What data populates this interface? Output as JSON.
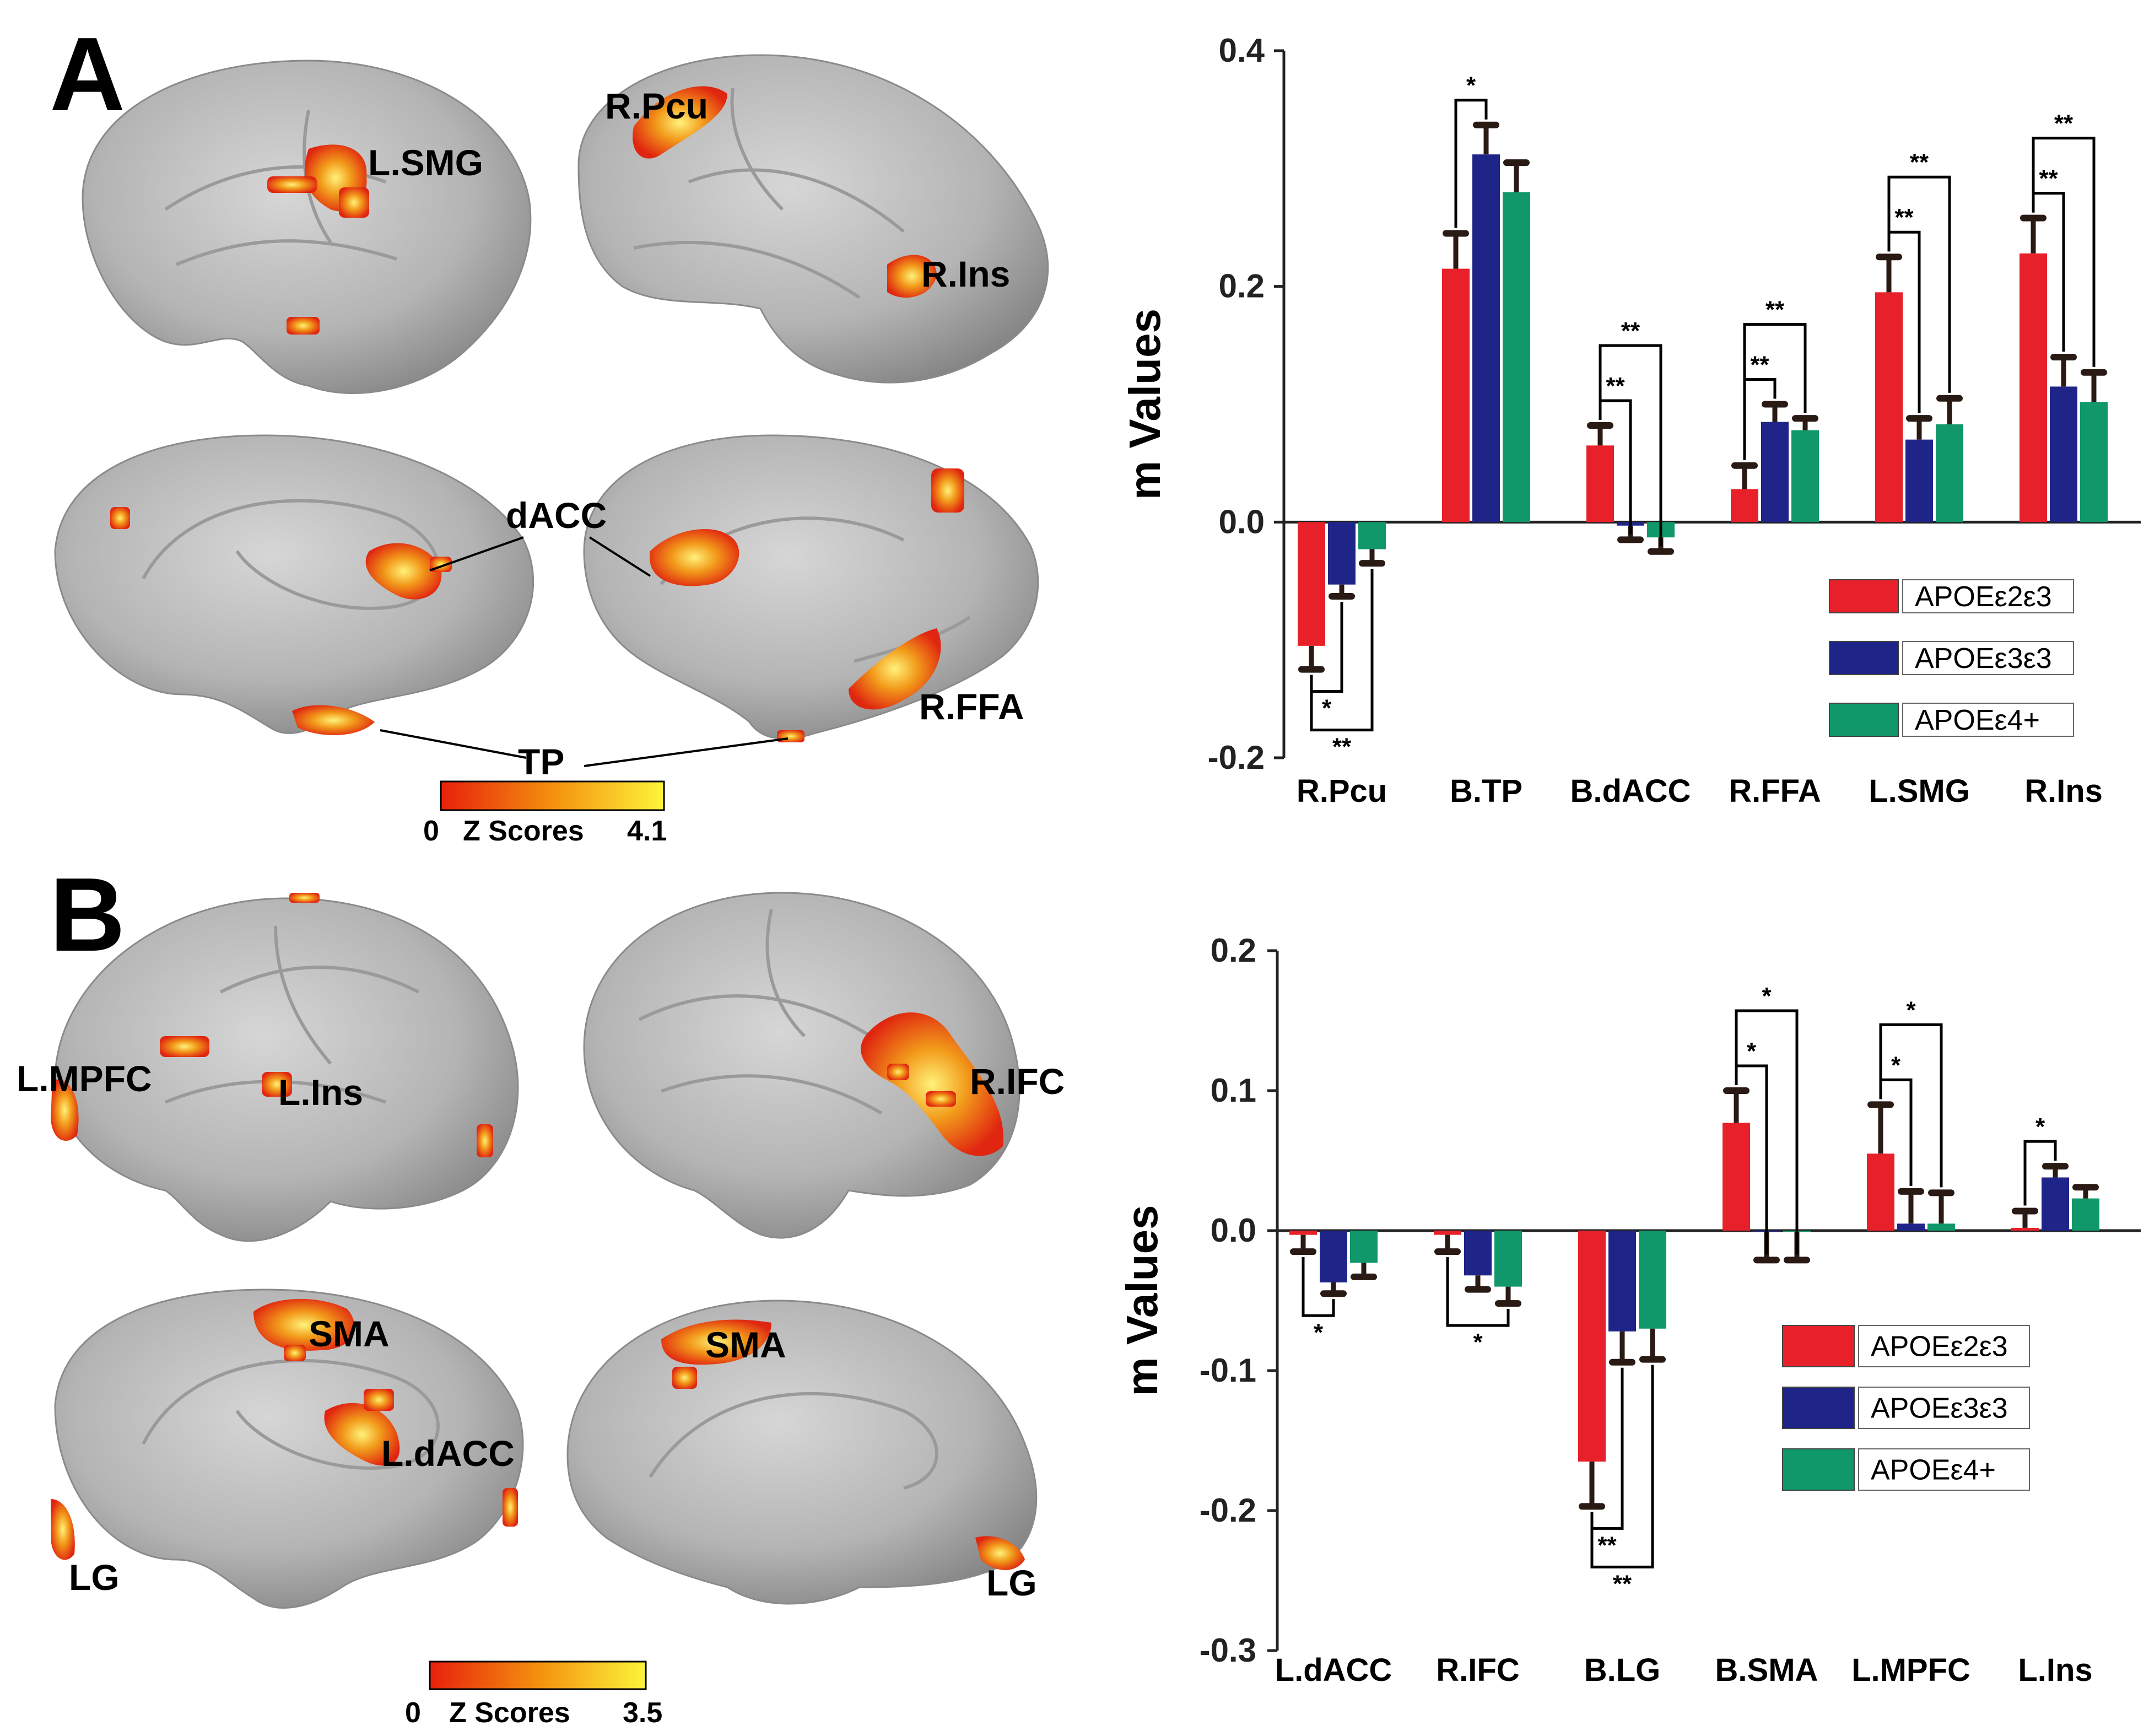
{
  "colors": {
    "red": "#e8202a",
    "blue": "#1f2588",
    "green": "#10986a",
    "err": "#2a1a14"
  },
  "panelA": {
    "letter": "A",
    "brain_labels": {
      "lsmg": "L.SMG",
      "rpcu": "R.Pcu",
      "rins": "R.Ins",
      "dacc": "dACC",
      "rffa": "R.FFA",
      "tp": "TP"
    },
    "colorbar": {
      "min": "0",
      "label": "Z  Scores",
      "max": "4.1"
    }
  },
  "panelB": {
    "letter": "B",
    "brain_labels": {
      "lmpfc": "L.MPFC",
      "lins": "L.Ins",
      "rifc": "R.IFC",
      "sma_l": "SMA",
      "sma_r": "SMA",
      "ldacc": "L.dACC",
      "lg_l": "LG",
      "lg_r": "LG"
    },
    "colorbar": {
      "min": "0",
      "label": "Z  Scores",
      "max": "3.5"
    }
  },
  "chart_data": [
    {
      "id": "A",
      "type": "bar",
      "ylabel": "m Values",
      "ylim": [
        -0.2,
        0.4
      ],
      "yticks": [
        "-0.2",
        "0.0",
        "0.2",
        "0.4"
      ],
      "categories": [
        "R.Pcu",
        "B.TP",
        "B.dACC",
        "R.FFA",
        "L.SMG",
        "R.Ins"
      ],
      "series": [
        {
          "name": "APOEε2ε3",
          "values": [
            -0.105,
            0.215,
            0.065,
            0.028,
            0.195,
            0.228
          ],
          "errors": [
            0.02,
            0.03,
            0.017,
            0.02,
            0.03,
            0.03
          ]
        },
        {
          "name": "APOEε3ε3",
          "values": [
            -0.053,
            0.312,
            -0.003,
            0.085,
            0.07,
            0.115
          ],
          "errors": [
            0.01,
            0.025,
            0.012,
            0.015,
            0.018,
            0.025
          ]
        },
        {
          "name": "APOEε4+",
          "values": [
            -0.023,
            0.28,
            -0.013,
            0.078,
            0.083,
            0.102
          ],
          "errors": [
            0.012,
            0.025,
            0.012,
            0.01,
            0.022,
            0.025
          ]
        }
      ],
      "annotations": [
        {
          "text": "*",
          "category": 1,
          "pair": [
            0,
            1
          ]
        },
        {
          "text": "**",
          "category": 2,
          "pair": [
            0,
            1
          ]
        },
        {
          "text": "**",
          "category": 2,
          "pair": [
            0,
            2
          ]
        },
        {
          "text": "**",
          "category": 3,
          "pair": [
            0,
            1
          ]
        },
        {
          "text": "**",
          "category": 3,
          "pair": [
            0,
            2
          ]
        },
        {
          "text": "**",
          "category": 4,
          "pair": [
            0,
            1
          ]
        },
        {
          "text": "**",
          "category": 4,
          "pair": [
            0,
            2
          ]
        },
        {
          "text": "**",
          "category": 5,
          "pair": [
            0,
            1
          ]
        },
        {
          "text": "**",
          "category": 5,
          "pair": [
            0,
            2
          ]
        },
        {
          "text": "*",
          "category": 0,
          "pair": [
            0,
            1
          ]
        },
        {
          "text": "**",
          "category": 0,
          "pair": [
            0,
            2
          ]
        }
      ]
    },
    {
      "id": "B",
      "type": "bar",
      "ylabel": "m Values",
      "ylim": [
        -0.3,
        0.2
      ],
      "yticks": [
        "-0.3",
        "-0.2",
        "-0.1",
        "0.0",
        "0.1",
        "0.2"
      ],
      "categories": [
        "L.dACC",
        "R.IFC",
        "B.LG",
        "B.SMA",
        "L.MPFC",
        "L.Ins"
      ],
      "series": [
        {
          "name": "APOEε2ε3",
          "values": [
            -0.003,
            -0.003,
            -0.165,
            0.077,
            0.055,
            0.002
          ],
          "errors": [
            0.012,
            0.012,
            0.032,
            0.023,
            0.035,
            0.012
          ]
        },
        {
          "name": "APOEε3ε3",
          "values": [
            -0.037,
            -0.032,
            -0.072,
            -0.001,
            0.005,
            0.038
          ],
          "errors": [
            0.008,
            0.01,
            0.022,
            0.02,
            0.023,
            0.008
          ]
        },
        {
          "name": "APOEε4+",
          "values": [
            -0.023,
            -0.04,
            -0.07,
            -0.001,
            0.005,
            0.023
          ],
          "errors": [
            0.01,
            0.012,
            0.022,
            0.02,
            0.022,
            0.008
          ]
        }
      ],
      "annotations": [
        {
          "text": "*",
          "category": 0,
          "pair": [
            0,
            1
          ]
        },
        {
          "text": "*",
          "category": 1,
          "pair": [
            0,
            2
          ]
        },
        {
          "text": "**",
          "category": 2,
          "pair": [
            0,
            1
          ]
        },
        {
          "text": "**",
          "category": 2,
          "pair": [
            0,
            2
          ]
        },
        {
          "text": "*",
          "category": 3,
          "pair": [
            0,
            1
          ]
        },
        {
          "text": "*",
          "category": 3,
          "pair": [
            0,
            2
          ]
        },
        {
          "text": "*",
          "category": 4,
          "pair": [
            0,
            1
          ]
        },
        {
          "text": "*",
          "category": 4,
          "pair": [
            0,
            2
          ]
        },
        {
          "text": "*",
          "category": 5,
          "pair": [
            0,
            1
          ]
        }
      ]
    }
  ]
}
